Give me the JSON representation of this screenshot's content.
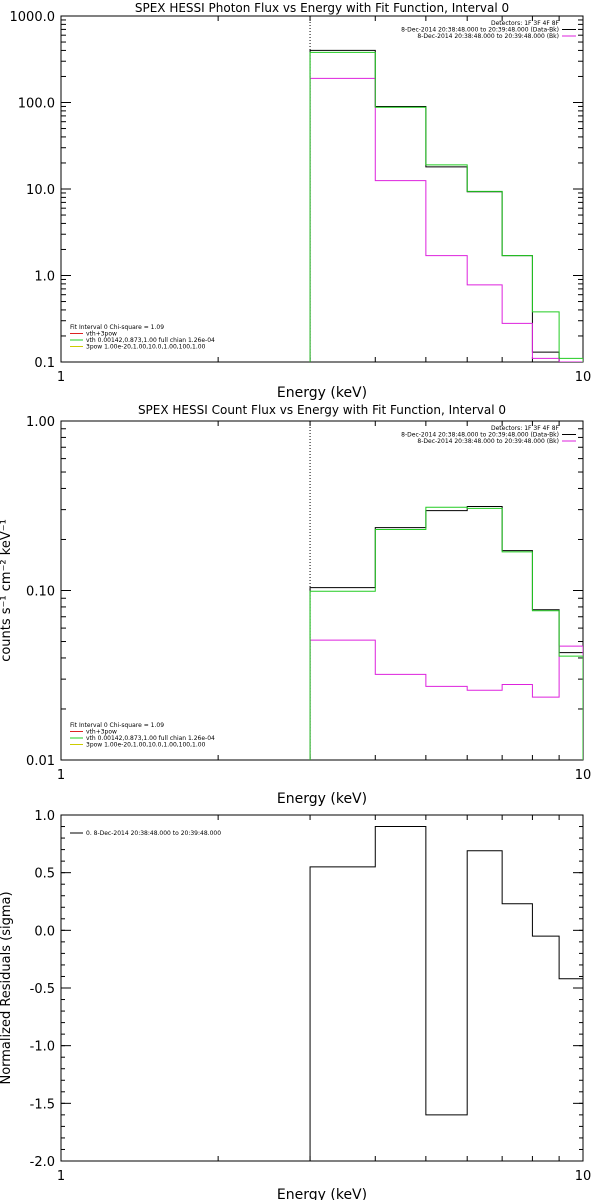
{
  "colors": {
    "black": "#000000",
    "magenta": "#dd22dd",
    "green": "#22cc22",
    "red": "#dd2222",
    "yellow": "#cccc00"
  },
  "chart_data": [
    {
      "type": "line",
      "step": true,
      "title": "SPEX HESSI Photon Flux vs Energy with Fit Function, Interval 0",
      "xlabel": "Energy (keV)",
      "ylabel": "",
      "xscale": "log",
      "yscale": "log",
      "xlim": [
        1,
        10
      ],
      "ylim": [
        0.1,
        1000
      ],
      "xticks": [
        {
          "v": 1,
          "label": "1"
        },
        {
          "v": 10,
          "label": "10"
        }
      ],
      "yticks": [
        {
          "v": 0.1,
          "label": "0.1"
        },
        {
          "v": 1,
          "label": "1.0"
        },
        {
          "v": 10,
          "label": "10.0"
        },
        {
          "v": 100,
          "label": "100.0"
        },
        {
          "v": 1000,
          "label": "1000.0"
        }
      ],
      "marker_line_x": 3.0,
      "edges": [
        3.0,
        4.0,
        5.0,
        6.0,
        7.0,
        8.0,
        9.0,
        10.0
      ],
      "series": [
        {
          "color": "#000000",
          "values": [
            400,
            90,
            18,
            9.3,
            1.7,
            0.13,
            0.1
          ]
        },
        {
          "color": "#dd22dd",
          "values": [
            190,
            12.5,
            1.7,
            0.78,
            0.28,
            0.11,
            0.1
          ]
        },
        {
          "color": "#22cc22",
          "values": [
            380,
            88,
            19,
            9.4,
            1.7,
            0.38,
            0.11
          ]
        }
      ],
      "legend_right": {
        "placement": "top-right",
        "entries": [
          {
            "text": "Detectors: 1F 3F 4F 8F",
            "color": ""
          },
          {
            "text": "8-Dec-2014 20:38:48.000 to 20:39:48.000 (Data-Bk)",
            "color": "#000000"
          },
          {
            "text": "8-Dec-2014 20:38:48.000 to 20:39:48.000 (Bk)",
            "color": "#dd22dd"
          }
        ]
      },
      "legend_left": {
        "placement": "bottom-left",
        "entries": [
          {
            "text": "Fit Interval 0   Chi-square = 1.09",
            "color": ""
          },
          {
            "text": "vth+3pow",
            "color": "#dd2222"
          },
          {
            "text": "vth 0.00142,0.873,1.00  full chian 1.26e-04",
            "color": "#22cc22"
          },
          {
            "text": "3pow 1.00e-20,1.00,10.0,1.00,100,1.00",
            "color": "#cccc00"
          }
        ]
      }
    },
    {
      "type": "line",
      "step": true,
      "title": "SPEX HESSI Count Flux vs Energy with Fit Function, Interval 0",
      "xlabel": "Energy (keV)",
      "ylabel": "counts s⁻¹ cm⁻² keV⁻¹",
      "xscale": "log",
      "yscale": "log",
      "xlim": [
        1,
        10
      ],
      "ylim": [
        0.01,
        1
      ],
      "xticks": [
        {
          "v": 1,
          "label": "1"
        },
        {
          "v": 10,
          "label": "10"
        }
      ],
      "yticks": [
        {
          "v": 0.01,
          "label": "0.01"
        },
        {
          "v": 0.1,
          "label": "0.10"
        },
        {
          "v": 1,
          "label": "1.00"
        }
      ],
      "marker_line_x": 3.0,
      "edges": [
        3.0,
        4.0,
        5.0,
        6.0,
        7.0,
        8.0,
        9.0,
        10.0
      ],
      "series": [
        {
          "color": "#000000",
          "values": [
            0.104,
            0.235,
            0.296,
            0.313,
            0.172,
            0.077,
            0.043
          ]
        },
        {
          "color": "#dd22dd",
          "values": [
            0.051,
            0.032,
            0.0272,
            0.0258,
            0.0279,
            0.0235,
            0.047
          ]
        },
        {
          "color": "#22cc22",
          "values": [
            0.099,
            0.229,
            0.31,
            0.305,
            0.169,
            0.076,
            0.041
          ]
        }
      ],
      "legend_right": {
        "placement": "top-right",
        "entries": [
          {
            "text": "Detectors: 1F 3F 4F 8F",
            "color": ""
          },
          {
            "text": "8-Dec-2014 20:38:48.000 to 20:39:48.000 (Data-Bk)",
            "color": "#000000"
          },
          {
            "text": "8-Dec-2014 20:38:48.000 to 20:39:48.000 (Bk)",
            "color": "#dd22dd"
          }
        ]
      },
      "legend_left": {
        "placement": "bottom-left",
        "entries": [
          {
            "text": "Fit Interval 0   Chi-square = 1.09",
            "color": ""
          },
          {
            "text": "vth+3pow",
            "color": "#dd2222"
          },
          {
            "text": "vth 0.00142,0.873,1.00  full chian 1.26e-04",
            "color": "#22cc22"
          },
          {
            "text": "3pow 1.00e-20,1.00,10.0,1.00,100,1.00",
            "color": "#cccc00"
          }
        ]
      }
    },
    {
      "type": "line",
      "step": true,
      "title": "",
      "xlabel": "Energy (keV)",
      "ylabel": "Normalized Residuals (sigma)",
      "xscale": "log",
      "yscale": "linear",
      "xlim": [
        1,
        10
      ],
      "ylim": [
        -2.0,
        1.0
      ],
      "xticks": [
        {
          "v": 1,
          "label": "1"
        },
        {
          "v": 10,
          "label": "10"
        }
      ],
      "yticks": [
        {
          "v": -2.0,
          "label": "-2.0"
        },
        {
          "v": -1.5,
          "label": "-1.5"
        },
        {
          "v": -1.0,
          "label": "-1.0"
        },
        {
          "v": -0.5,
          "label": "-0.5"
        },
        {
          "v": 0.0,
          "label": "0.0"
        },
        {
          "v": 0.5,
          "label": "0.5"
        },
        {
          "v": 1.0,
          "label": "1.0"
        }
      ],
      "edges": [
        3.0,
        4.0,
        5.0,
        6.0,
        7.0,
        8.0,
        9.0,
        10.0
      ],
      "series": [
        {
          "color": "#000000",
          "values": [
            0.55,
            0.9,
            -1.6,
            0.69,
            0.23,
            -0.05,
            -0.42
          ]
        }
      ],
      "legend_left": {
        "placement": "top-left",
        "entries": [
          {
            "text": "0.  8-Dec-2014 20:38:48.000 to 20:39:48.000",
            "color": "#000000"
          }
        ]
      }
    }
  ]
}
